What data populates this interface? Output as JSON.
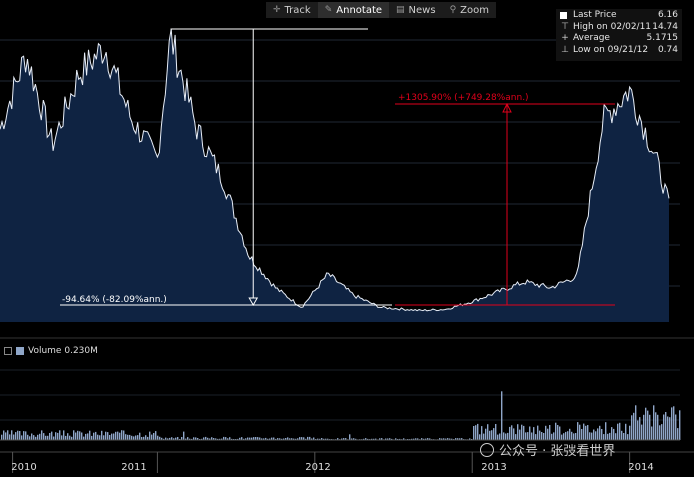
{
  "toolbar": {
    "items": [
      {
        "label": "Track",
        "icon": "crosshair-icon"
      },
      {
        "label": "Annotate",
        "icon": "pencil-icon"
      },
      {
        "label": "News",
        "icon": "news-icon"
      },
      {
        "label": "Zoom",
        "icon": "magnifier-icon"
      }
    ]
  },
  "legend": {
    "last_price_label": "Last Price",
    "last_price_value": "6.16",
    "high_label": "High on 02/02/11",
    "high_value": "14.74",
    "average_label": "Average",
    "average_value": "5.1715",
    "low_label": "Low on 09/21/12",
    "low_value": "0.74"
  },
  "annotations": {
    "decline": "-94.64% (-82.09%ann.)",
    "rise": "+1305.90% (+749.28%ann.)"
  },
  "volume_legend": {
    "label": "Volume",
    "value": "0.230M"
  },
  "watermark": "公众号 · 张弢看世界",
  "colors": {
    "area_fill": "#0f2342",
    "line": "#e8eef8",
    "volume": "#8fa6c8",
    "annotation_red": "#e0001b",
    "background": "#000000"
  },
  "chart_data": [
    {
      "type": "area",
      "title": "",
      "x": [
        "2010-01",
        "2010-03",
        "2010-05",
        "2010-07",
        "2010-09",
        "2010-11",
        "2011-01",
        "2011-02",
        "2011-04",
        "2011-06",
        "2011-08",
        "2011-10",
        "2011-12",
        "2012-02",
        "2012-04",
        "2012-06",
        "2012-09",
        "2012-11",
        "2013-01",
        "2013-03",
        "2013-05",
        "2013-07",
        "2013-09",
        "2013-11",
        "2014-01",
        "2014-03",
        "2014-04"
      ],
      "y": [
        10.0,
        13.8,
        9.2,
        12.8,
        14.2,
        10.5,
        8.5,
        14.74,
        10.0,
        7.4,
        3.5,
        1.9,
        0.9,
        2.6,
        1.5,
        0.9,
        0.74,
        0.8,
        1.2,
        1.7,
        2.2,
        1.9,
        2.5,
        10.5,
        12.0,
        8.5,
        6.16
      ],
      "ylabel": "",
      "xlabel": "",
      "xticks": [
        "2010",
        "2011",
        "2012",
        "2013",
        "2014"
      ],
      "grid": true,
      "legend_position": "top-right"
    },
    {
      "type": "bar",
      "title": "",
      "categories": [
        "2010",
        "2011",
        "2012",
        "2013",
        "2014"
      ],
      "series": [
        {
          "name": "Volume",
          "values": [
            0.25,
            0.08,
            0.05,
            0.45,
            0.9
          ]
        }
      ],
      "unit": "M"
    }
  ]
}
